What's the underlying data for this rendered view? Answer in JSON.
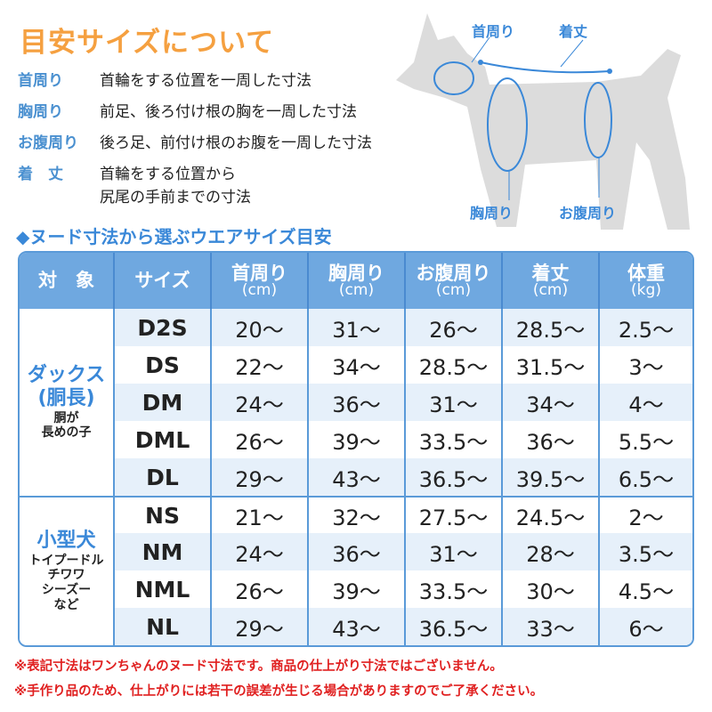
{
  "title": "目安サイズについて",
  "definitions": [
    {
      "term": "首周り",
      "desc": "首輪をする位置を一周した寸法"
    },
    {
      "term": "胸周り",
      "desc": "前足、後ろ付け根の胸を一周した寸法"
    },
    {
      "term": "お腹周り",
      "desc": "後ろ足、前付け根のお腹を一周した寸法"
    },
    {
      "term": "着　丈",
      "desc": "首輪をする位置から",
      "desc2": "尻尾の手前までの寸法"
    }
  ],
  "diagram_labels": {
    "neck": "首周り",
    "length": "着丈",
    "chest": "胸周り",
    "belly": "お腹周り"
  },
  "subtitle": "◆ヌード寸法から選ぶウエアサイズ目安",
  "table": {
    "headers": [
      {
        "l": "対　象"
      },
      {
        "l": "サイズ"
      },
      {
        "l": "首周り",
        "u": "(cm)"
      },
      {
        "l": "胸周り",
        "u": "(cm)"
      },
      {
        "l": "お腹周り",
        "u": "(cm)"
      },
      {
        "l": "着丈",
        "u": "(cm)"
      },
      {
        "l": "体重",
        "u": "(kg)"
      }
    ],
    "groups": [
      {
        "name": "ダックス",
        "name2": "(胴長)",
        "desc": "胴が",
        "desc2": "長めの子",
        "rows": [
          [
            "D2S",
            "20～",
            "31～",
            "26～",
            "28.5～",
            "2.5～"
          ],
          [
            "DS",
            "22～",
            "34～",
            "28.5～",
            "31.5～",
            "3～"
          ],
          [
            "DM",
            "24～",
            "36～",
            "31～",
            "34～",
            "4～"
          ],
          [
            "DML",
            "26～",
            "39～",
            "33.5～",
            "36～",
            "5.5～"
          ],
          [
            "DL",
            "29～",
            "43～",
            "36.5～",
            "39.5～",
            "6.5～"
          ]
        ]
      },
      {
        "name": "小型犬",
        "desc": "トイプードル",
        "desc2": "チワワ",
        "desc3": "シーズー",
        "desc4": "など",
        "rows": [
          [
            "NS",
            "21～",
            "32～",
            "27.5～",
            "24.5～",
            "2～"
          ],
          [
            "NM",
            "24～",
            "36～",
            "31～",
            "28～",
            "3.5～"
          ],
          [
            "NML",
            "26～",
            "39～",
            "33.5～",
            "30～",
            "4.5～"
          ],
          [
            "NL",
            "29～",
            "43～",
            "36.5～",
            "33～",
            "6～"
          ]
        ]
      }
    ]
  },
  "notes": [
    "※表記寸法はワンちゃんのヌード寸法です。商品の仕上がり寸法ではございません。",
    "※手作り品のため、仕上がりには若干の誤差が生じる場合がありますのでご了承ください。"
  ],
  "colors": {
    "title": "#f5a040",
    "accent": "#3a88d8",
    "header": "#6fa8e0",
    "row_alt": "#e6f0fa",
    "note": "#e02020"
  }
}
